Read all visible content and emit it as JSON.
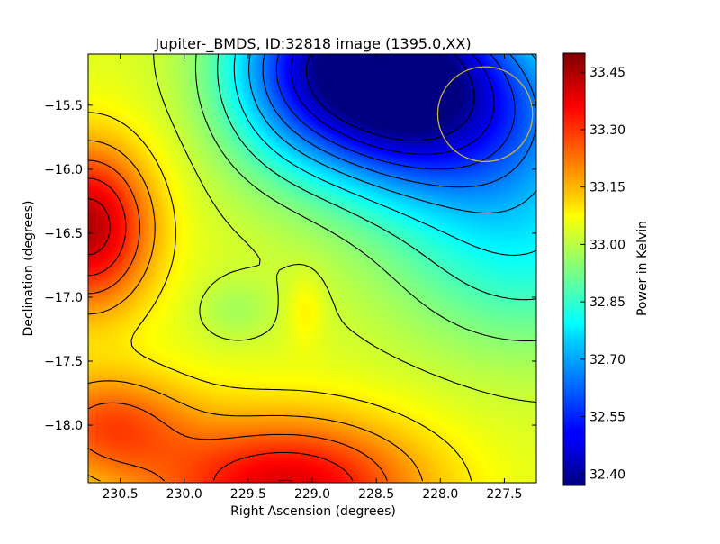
{
  "chart_data": {
    "type": "heatmap",
    "title": "Jupiter-_BMDS, ID:32818 image (1395.0,XX)",
    "xlabel": "Right Ascension (degrees)",
    "ylabel": "Declination (degrees)",
    "colorbar_label": "Power in Kelvin",
    "xlim": [
      230.75,
      227.25
    ],
    "ylim": [
      -18.45,
      -15.1
    ],
    "x_ticks": [
      230.5,
      230.0,
      229.5,
      229.0,
      228.5,
      228.0,
      227.5
    ],
    "x_tick_labels": [
      "230.5",
      "230.0",
      "229.5",
      "229.0",
      "228.5",
      "228.0",
      "227.5"
    ],
    "y_ticks": [
      -15.5,
      -16.0,
      -16.5,
      -17.0,
      -17.5,
      -18.0
    ],
    "y_tick_labels": [
      "−15.5",
      "−16.0",
      "−16.5",
      "−17.0",
      "−17.5",
      "−18.0"
    ],
    "colorbar_range": [
      32.37,
      33.5
    ],
    "colorbar_ticks": [
      32.4,
      32.55,
      32.7,
      32.85,
      33.0,
      33.15,
      33.3,
      33.45
    ],
    "colorbar_tick_labels": [
      "32.40",
      "32.55",
      "32.70",
      "32.85",
      "33.00",
      "33.15",
      "33.30",
      "33.45"
    ],
    "colormap": "jet",
    "contours": true,
    "features": [
      {
        "kind": "max",
        "x": 230.7,
        "y": -16.45,
        "value": 33.42
      },
      {
        "kind": "max",
        "x": 229.2,
        "y": -18.45,
        "value": 33.48
      },
      {
        "kind": "min",
        "x": 228.45,
        "y": -15.2,
        "value": 32.38
      },
      {
        "kind": "local",
        "x": 229.6,
        "y": -17.1,
        "value": 32.93
      }
    ],
    "annotation_circle": {
      "x": 227.65,
      "y": -15.57,
      "radius_deg": 0.37,
      "color": "#c8b43c"
    }
  }
}
